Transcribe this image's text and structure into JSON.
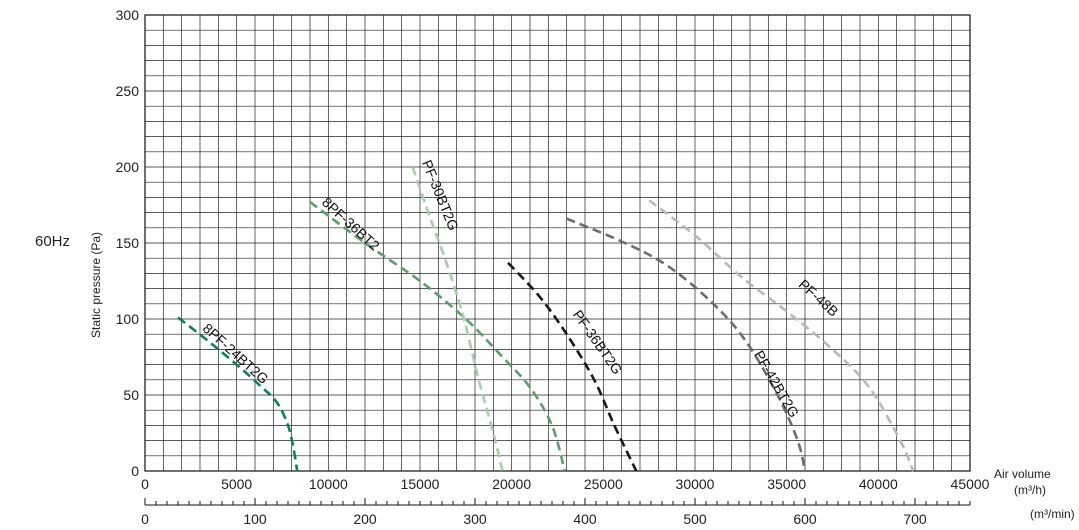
{
  "frequency_label": "60Hz",
  "chart_data": {
    "type": "line",
    "title": "",
    "ylabel": "Static pressure (Pa)",
    "xlabel_primary": "Air volume",
    "x_unit_primary": "(m³/h)",
    "x_unit_secondary": "(m³/min)",
    "xlim": [
      0,
      45000
    ],
    "ylim": [
      0,
      300
    ],
    "x_ticks": [
      "0",
      "5000",
      "10000",
      "15000",
      "20000",
      "25000",
      "30000",
      "35000",
      "40000",
      "45000"
    ],
    "x2_ticks": [
      "0",
      "100",
      "200",
      "300",
      "400",
      "500",
      "600",
      "700"
    ],
    "y_ticks": [
      "0",
      "50",
      "100",
      "150",
      "200",
      "250",
      "300"
    ],
    "grid": true,
    "series": [
      {
        "name": "8PF-24BT2G",
        "color": "#0f7f5a",
        "points": [
          [
            1800,
            101
          ],
          [
            3500,
            85
          ],
          [
            5000,
            70
          ],
          [
            6200,
            57
          ],
          [
            7200,
            45
          ],
          [
            7800,
            30
          ],
          [
            8100,
            15
          ],
          [
            8300,
            0
          ]
        ]
      },
      {
        "name": "8PF-36BT2",
        "color": "#5a9e6e",
        "points": [
          [
            9000,
            177
          ],
          [
            12000,
            150
          ],
          [
            15000,
            125
          ],
          [
            17500,
            100
          ],
          [
            19500,
            75
          ],
          [
            21000,
            55
          ],
          [
            22200,
            30
          ],
          [
            22900,
            0
          ]
        ]
      },
      {
        "name": "PF-30BT2G",
        "color": "#a9ccaa",
        "points": [
          [
            14600,
            200
          ],
          [
            15600,
            165
          ],
          [
            16500,
            135
          ],
          [
            17400,
            100
          ],
          [
            18200,
            60
          ],
          [
            19000,
            25
          ],
          [
            19500,
            0
          ]
        ]
      },
      {
        "name": "PF-36BT2G",
        "color": "#1a1a1a",
        "points": [
          [
            19800,
            137
          ],
          [
            21500,
            115
          ],
          [
            23000,
            90
          ],
          [
            24500,
            60
          ],
          [
            25600,
            30
          ],
          [
            26800,
            0
          ]
        ]
      },
      {
        "name": "PF-42BT2G",
        "color": "#6d6d6d",
        "points": [
          [
            23000,
            166
          ],
          [
            26000,
            151
          ],
          [
            28500,
            135
          ],
          [
            31000,
            110
          ],
          [
            32800,
            85
          ],
          [
            34500,
            50
          ],
          [
            35600,
            20
          ],
          [
            36000,
            0
          ]
        ]
      },
      {
        "name": "PF-48B",
        "color": "#b8b8b8",
        "points": [
          [
            27500,
            178
          ],
          [
            30000,
            155
          ],
          [
            32500,
            128
          ],
          [
            35000,
            105
          ],
          [
            37500,
            80
          ],
          [
            39500,
            55
          ],
          [
            41200,
            20
          ],
          [
            41900,
            0
          ]
        ]
      }
    ]
  }
}
